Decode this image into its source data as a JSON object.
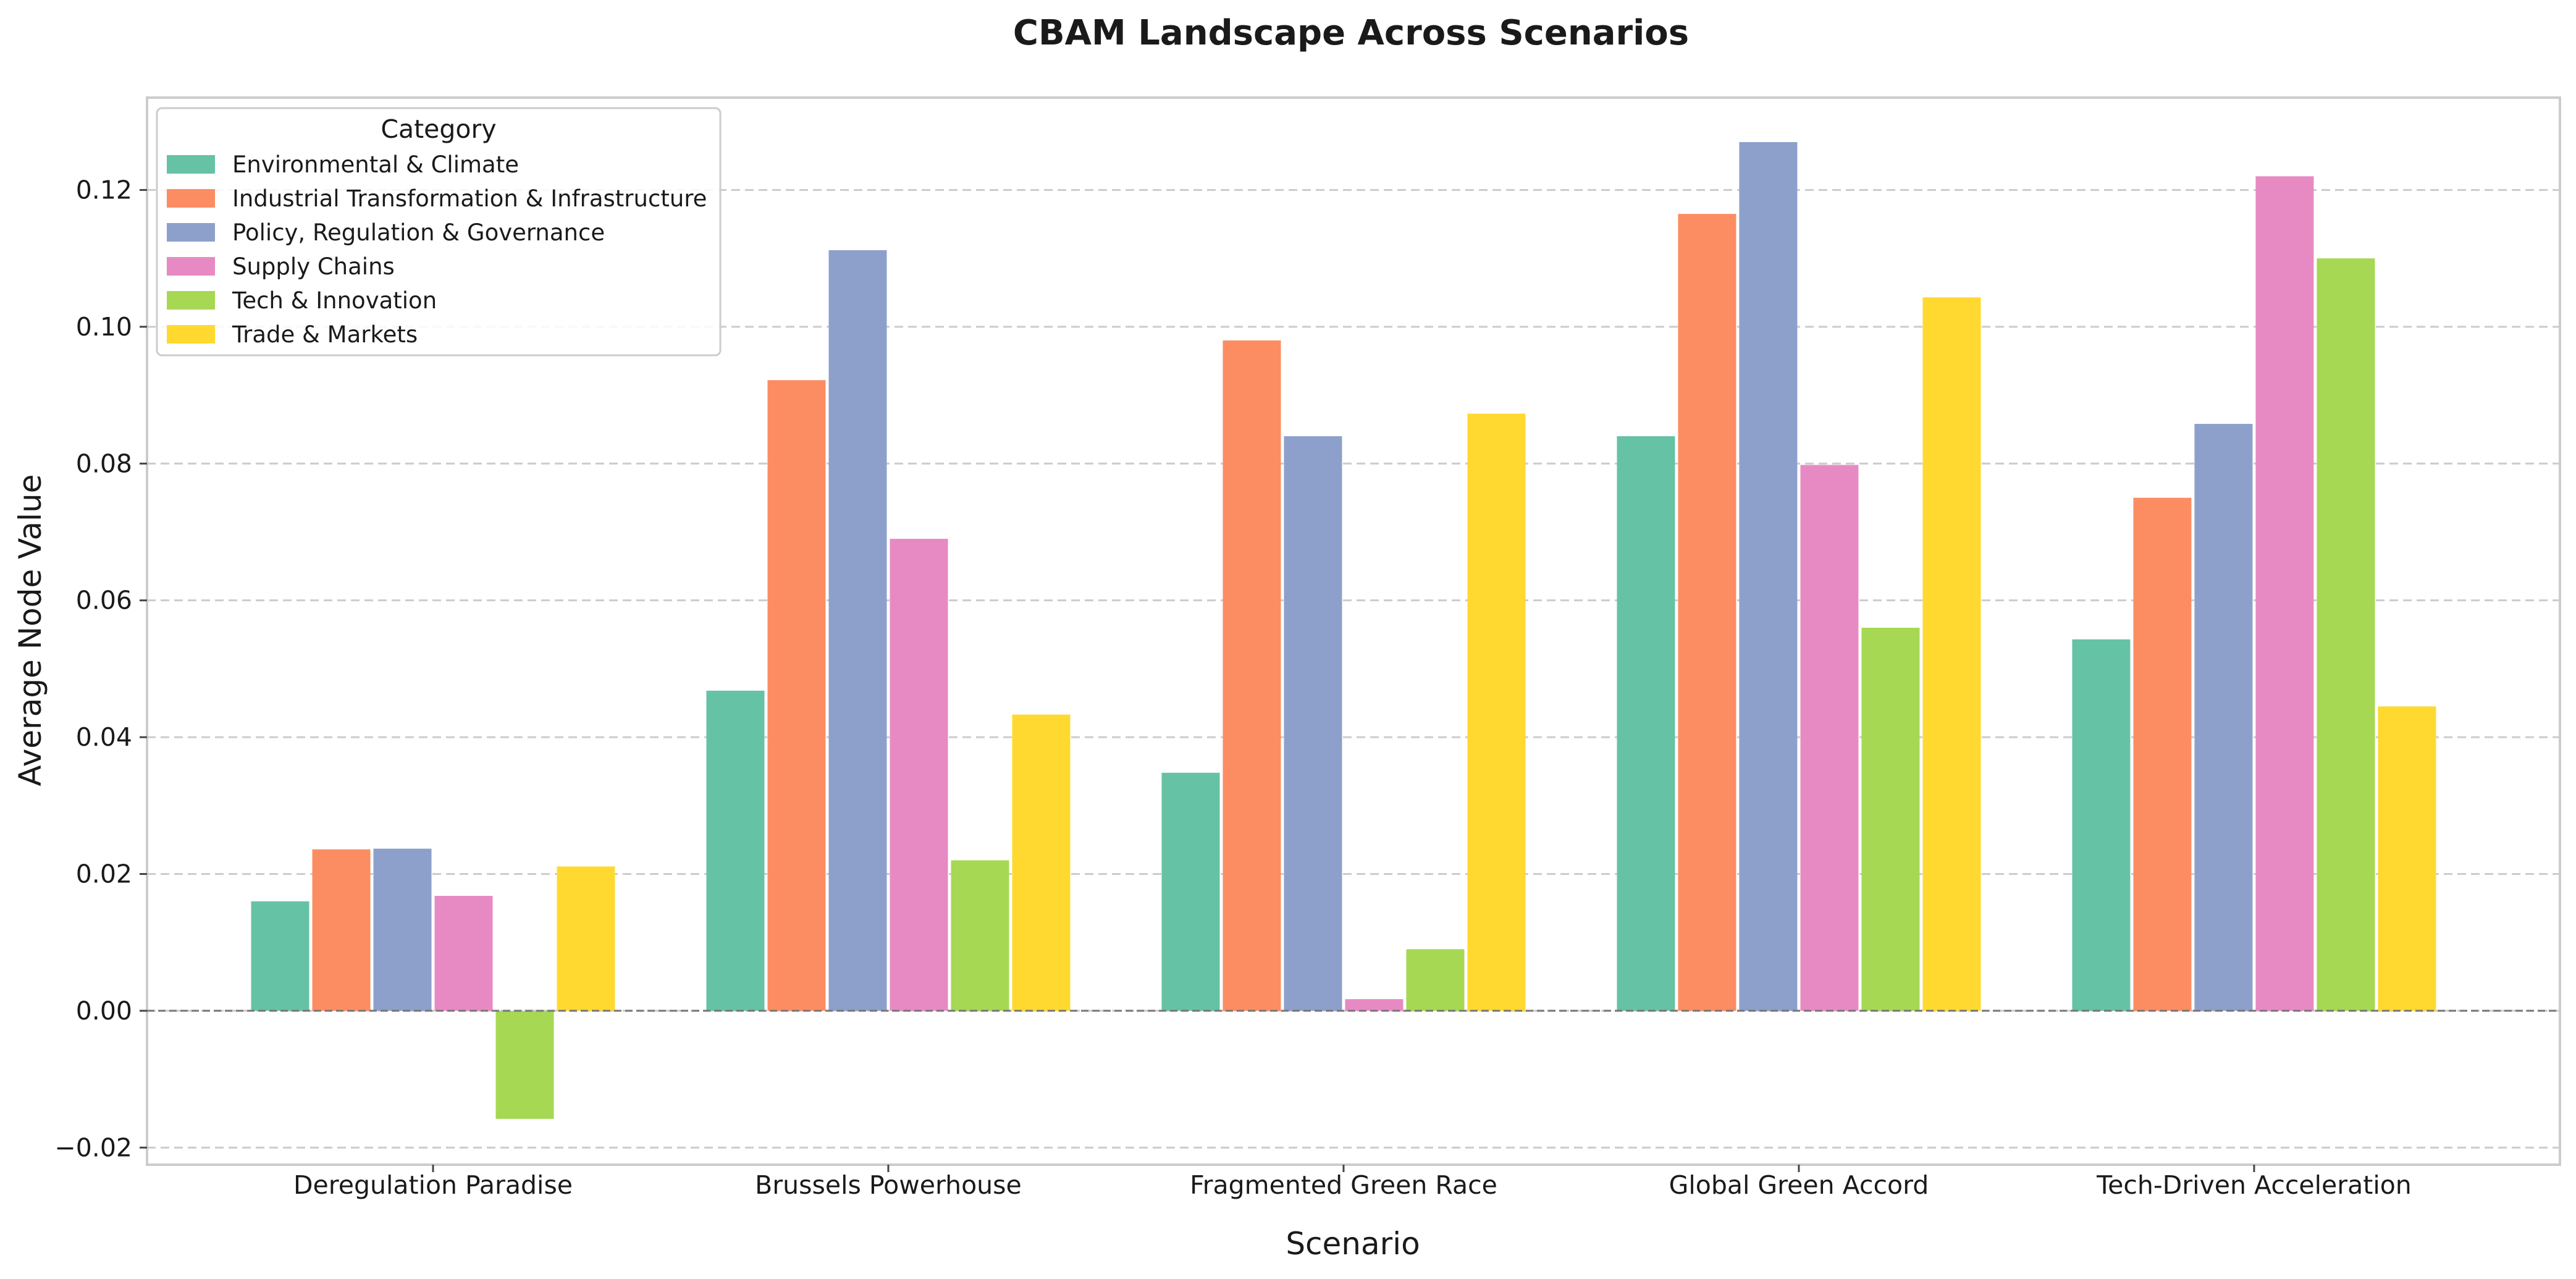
{
  "chart_data": {
    "type": "bar",
    "title": "CBAM Landscape Across Scenarios",
    "xlabel": "Scenario",
    "ylabel": "Average Node Value",
    "categories": [
      "Deregulation Paradise",
      "Brussels Powerhouse",
      "Fragmented Green Race",
      "Global Green Accord",
      "Tech-Driven Acceleration"
    ],
    "ylim": [
      -0.0225,
      0.1335
    ],
    "yticks": [
      -0.02,
      0.0,
      0.02,
      0.04,
      0.06,
      0.08,
      0.1,
      0.12
    ],
    "ytick_labels": [
      "−0.02",
      "0.00",
      "0.02",
      "0.04",
      "0.06",
      "0.08",
      "0.10",
      "0.12"
    ],
    "grid": "y-dashed",
    "zero_line": true,
    "legend": {
      "title": "Category",
      "position": "top-left"
    },
    "series": [
      {
        "name": "Environmental & Climate",
        "color": "#66c2a5",
        "values": [
          0.016,
          0.0468,
          0.0348,
          0.084,
          0.0543
        ]
      },
      {
        "name": "Industrial Transformation & Infrastructure",
        "color": "#fc8d62",
        "values": [
          0.0236,
          0.0922,
          0.098,
          0.1165,
          0.075
        ]
      },
      {
        "name": "Policy, Regulation & Governance",
        "color": "#8da0cb",
        "values": [
          0.0237,
          0.1112,
          0.084,
          0.127,
          0.0858
        ]
      },
      {
        "name": "Supply Chains",
        "color": "#e78ac3",
        "values": [
          0.0168,
          0.069,
          0.0017,
          0.0798,
          0.122
        ]
      },
      {
        "name": "Tech & Innovation",
        "color": "#a6d854",
        "values": [
          -0.0158,
          0.022,
          0.009,
          0.056,
          0.11
        ]
      },
      {
        "name": "Trade & Markets",
        "color": "#ffd92f",
        "values": [
          0.0211,
          0.0433,
          0.0873,
          0.1043,
          0.0445
        ]
      }
    ]
  }
}
